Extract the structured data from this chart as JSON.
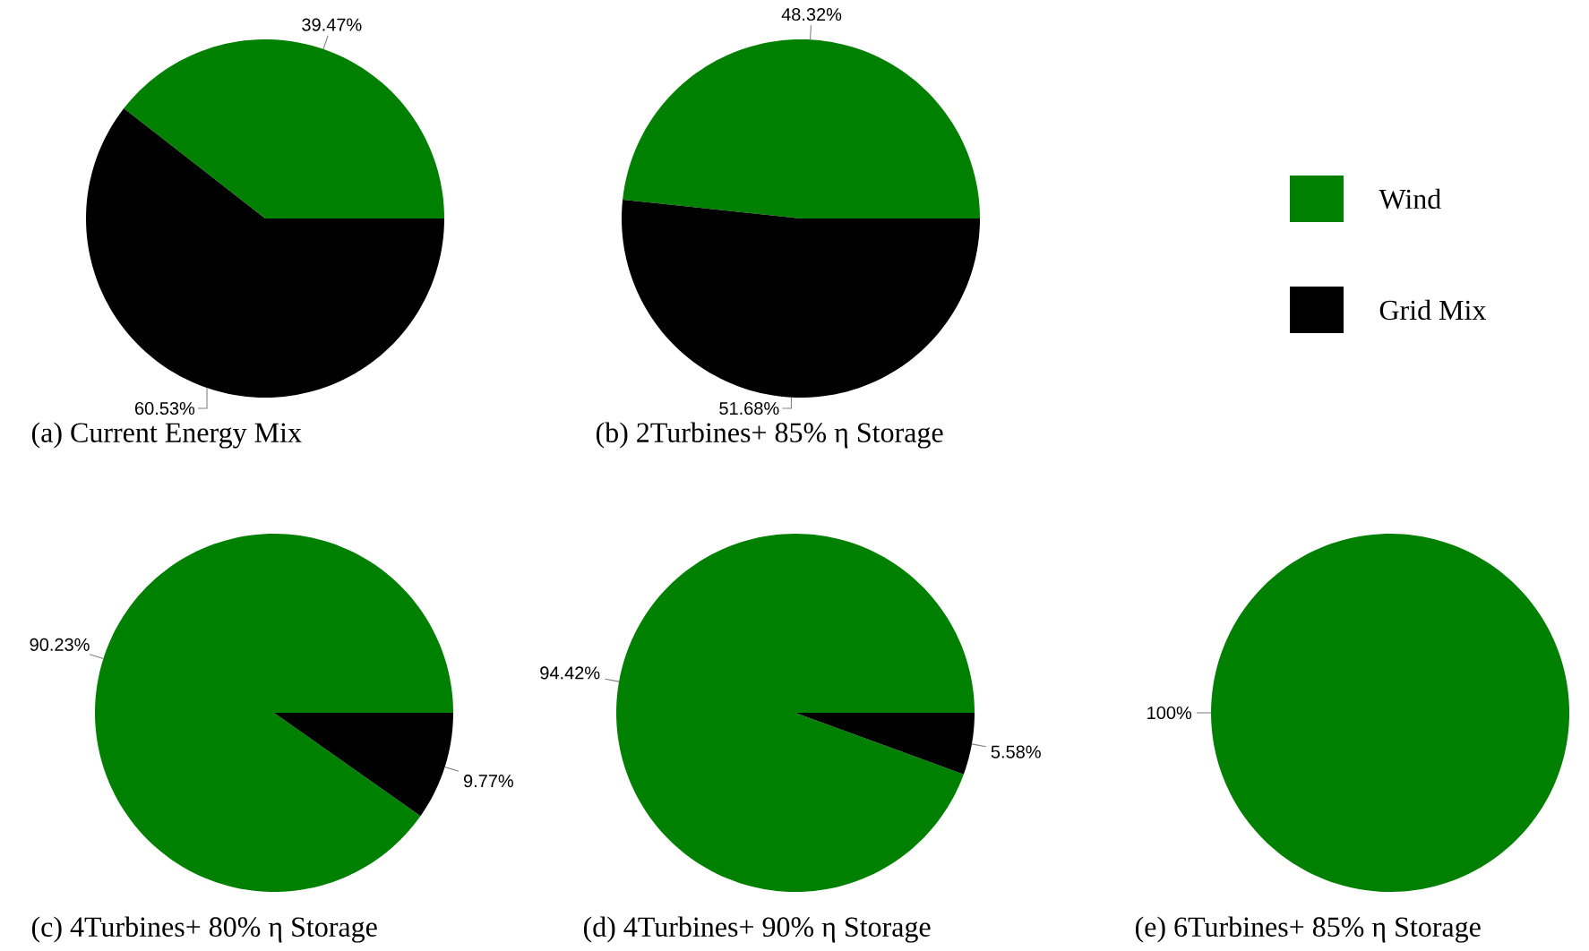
{
  "chart_data": [
    {
      "type": "pie",
      "title": "(a) Current Energy Mix",
      "categories": [
        null,
        null
      ],
      "values": [
        39.47,
        60.53
      ],
      "colors": [
        "#008000",
        "#000000"
      ],
      "value_labels": [
        "39.47%",
        "60.53%"
      ]
    },
    {
      "type": "pie",
      "title": "(b) 2Turbines+ 85% η Storage",
      "categories": [
        "Wind",
        "Grid Mix"
      ],
      "values": [
        48.32,
        51.68
      ],
      "colors": [
        "#008000",
        "#000000"
      ],
      "value_labels": [
        "48.32%",
        "51.68%"
      ],
      "legend": "right"
    },
    {
      "type": "pie",
      "title": "(c) 4Turbines+ 80% η Storage",
      "categories": [
        null,
        null
      ],
      "values": [
        90.23,
        9.77
      ],
      "colors": [
        "#008000",
        "#000000"
      ],
      "value_labels": [
        "90.23%",
        "9.77%"
      ]
    },
    {
      "type": "pie",
      "title": "(d) 4Turbines+ 90% η Storage",
      "categories": [
        null,
        null
      ],
      "values": [
        94.42,
        5.58
      ],
      "colors": [
        "#008000",
        "#000000"
      ],
      "value_labels": [
        "94.42%",
        "5.58%"
      ]
    },
    {
      "type": "pie",
      "title": "(e) 6Turbines+ 85% η Storage",
      "categories": [
        null,
        null
      ],
      "values": [
        100,
        0
      ],
      "colors": [
        "#008000",
        "#000000"
      ],
      "value_labels": [
        "100%",
        null
      ]
    }
  ]
}
